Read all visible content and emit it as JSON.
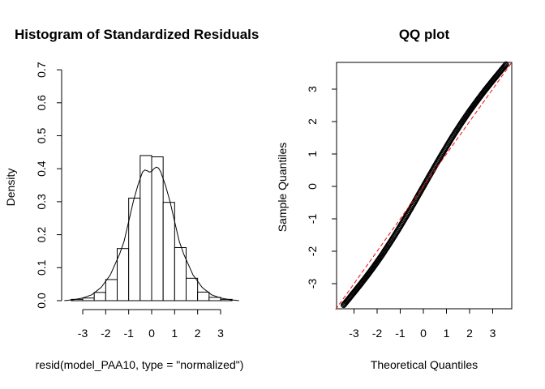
{
  "chart_data": [
    {
      "type": "bar",
      "subtype": "histogram",
      "title": "Histogram of Standardized Residuals",
      "xlabel": "resid(model_PAA10, type = \"normalized\")",
      "ylabel": "Density",
      "xlim": [
        -4,
        4
      ],
      "ylim": [
        0,
        0.7
      ],
      "xticks": [
        -3,
        -2,
        -1,
        0,
        1,
        2,
        3
      ],
      "yticks": [
        0.0,
        0.1,
        0.2,
        0.3,
        0.4,
        0.5,
        0.6,
        0.7
      ],
      "bins": [
        {
          "from": -3.5,
          "to": -3.0,
          "density": 0.004
        },
        {
          "from": -3.0,
          "to": -2.5,
          "density": 0.008
        },
        {
          "from": -2.5,
          "to": -2.0,
          "density": 0.025
        },
        {
          "from": -2.0,
          "to": -1.5,
          "density": 0.064
        },
        {
          "from": -1.5,
          "to": -1.0,
          "density": 0.158
        },
        {
          "from": -1.0,
          "to": -0.5,
          "density": 0.311
        },
        {
          "from": -0.5,
          "to": 0.0,
          "density": 0.44
        },
        {
          "from": 0.0,
          "to": 0.5,
          "density": 0.436
        },
        {
          "from": 0.5,
          "to": 1.0,
          "density": 0.298
        },
        {
          "from": 1.0,
          "to": 1.5,
          "density": 0.161
        },
        {
          "from": 1.5,
          "to": 2.0,
          "density": 0.068
        },
        {
          "from": 2.0,
          "to": 2.5,
          "density": 0.026
        },
        {
          "from": 2.5,
          "to": 3.0,
          "density": 0.01
        },
        {
          "from": 3.0,
          "to": 3.5,
          "density": 0.004
        }
      ],
      "density_curve": {
        "x": [
          -3.8,
          -3.4,
          -3.0,
          -2.6,
          -2.2,
          -1.8,
          -1.4,
          -1.2,
          -1.0,
          -0.8,
          -0.6,
          -0.4,
          -0.3,
          -0.2,
          -0.1,
          0.0,
          0.1,
          0.2,
          0.3,
          0.4,
          0.6,
          0.8,
          1.0,
          1.2,
          1.4,
          1.8,
          2.2,
          2.6,
          3.0,
          3.4,
          3.8
        ],
        "y": [
          0.0,
          0.003,
          0.008,
          0.018,
          0.04,
          0.078,
          0.14,
          0.18,
          0.24,
          0.3,
          0.35,
          0.39,
          0.396,
          0.394,
          0.39,
          0.392,
          0.4,
          0.405,
          0.402,
          0.39,
          0.35,
          0.3,
          0.24,
          0.18,
          0.14,
          0.078,
          0.04,
          0.018,
          0.008,
          0.003,
          0.0
        ]
      }
    },
    {
      "type": "scatter",
      "subtype": "qq",
      "title": "QQ plot",
      "xlabel": "Theoretical Quantiles",
      "ylabel": "Sample Quantiles",
      "xlim": [
        -3.8,
        3.8
      ],
      "ylim": [
        -3.8,
        3.8
      ],
      "xticks": [
        -3,
        -2,
        -1,
        0,
        1,
        2,
        3
      ],
      "yticks": [
        -3,
        -2,
        -1,
        0,
        1,
        2,
        3
      ],
      "reference_line": {
        "intercept": 0,
        "slope": 1,
        "color": "#ff0000",
        "style": "dashed"
      },
      "x_range": [
        -3.45,
        3.6
      ],
      "y_range": [
        -3.65,
        3.8
      ],
      "point_color": "#000000"
    }
  ]
}
